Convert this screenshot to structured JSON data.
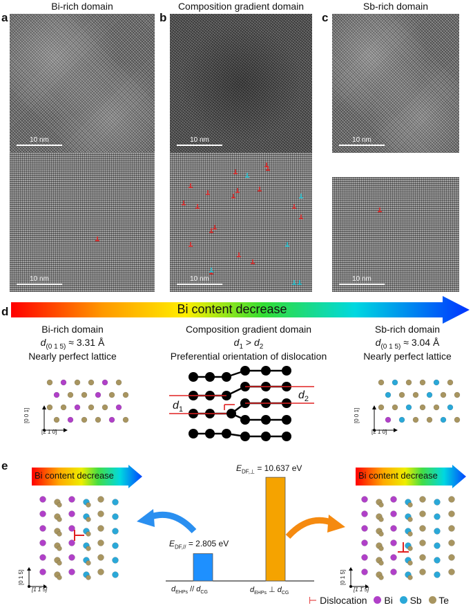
{
  "panel_a": {
    "letter": "a",
    "title": "Bi-rich domain",
    "scale_top": "10 nm",
    "scale_bottom": "10 nm"
  },
  "panel_b": {
    "letter": "b",
    "title": "Composition gradient domain",
    "scale_top": "10 nm",
    "scale_bottom": "10 nm"
  },
  "panel_c": {
    "letter": "c",
    "title": "Sb-rich domain",
    "scale_top": "10 nm",
    "scale_bottom": "10 nm"
  },
  "panel_d": {
    "letter": "d",
    "arrow_text": "Bi content decrease",
    "left": {
      "title": "Bi-rich domain",
      "d_var": "d",
      "d_sub": "(0 1 5)",
      "d_val": "≈ 3.31 Å",
      "desc": "Nearly perfect lattice",
      "axis_v": "[0 0 1]",
      "axis_h": "[2 1 0]"
    },
    "middle": {
      "title": "Composition gradient domain",
      "d1": "d",
      "d1_sub": "1",
      "gt": ">",
      "d2": "d",
      "d2_sub": "2",
      "desc": "Preferential orientation of dislocation",
      "label_d1": "d",
      "label_d1_sub": "1",
      "label_d2": "d",
      "label_d2_sub": "2"
    },
    "right": {
      "title": "Sb-rich domain",
      "d_var": "d",
      "d_sub": "(0 1 5)",
      "d_val": "≈ 3.04 Å",
      "desc": "Nearly perfect lattice",
      "axis_v": "[0 0 1]",
      "axis_h": "[2 1 0]"
    }
  },
  "panel_e": {
    "letter": "e",
    "arrow_left": "Bi content decrease",
    "arrow_right": "Bi content decrease",
    "axis_v": "[0 1 5]",
    "axis_h": "[1 1̄ 5̄]",
    "bar_labels": {
      "left_var": "E",
      "left_sub": "DF,//",
      "left_val": "= 2.805 eV",
      "right_var": "E",
      "right_sub": "DF,⊥",
      "right_val": "= 10.637 eV"
    },
    "x_labels": {
      "left_a": "d",
      "left_a_sub": "EHPs",
      "left_rel": "//",
      "left_b": "d",
      "left_b_sub": "CG",
      "right_a": "d",
      "right_a_sub": "EHPs",
      "right_rel": "⊥",
      "right_b": "d",
      "right_b_sub": "CG"
    }
  },
  "chart_data": {
    "type": "bar",
    "categories": [
      "dEHPs // dCG",
      "dEHPs ⊥ dCG"
    ],
    "values": [
      2.805,
      10.637
    ],
    "colors": [
      "#1e90ff",
      "#f5a300"
    ],
    "units": "eV"
  },
  "legend": {
    "dislocation": "Dislocation",
    "bi": "Bi",
    "sb": "Sb",
    "te": "Te",
    "colors": {
      "bi": "#b040c8",
      "sb": "#2aa8d8",
      "te": "#a89560",
      "dislocation": "#e02020"
    }
  }
}
